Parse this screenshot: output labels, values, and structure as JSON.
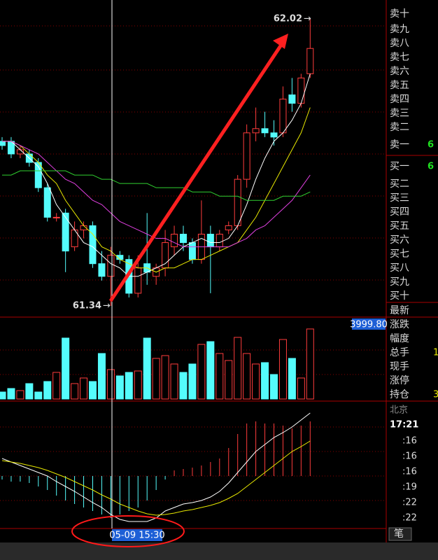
{
  "chart": {
    "high": 62.02,
    "low": 61.34,
    "ohlc": [
      [
        61.73,
        61.74,
        61.71,
        61.72
      ],
      [
        61.73,
        61.74,
        61.69,
        61.7
      ],
      [
        61.7,
        61.72,
        61.69,
        61.71
      ],
      [
        61.7,
        61.71,
        61.67,
        61.68
      ],
      [
        61.68,
        61.69,
        61.61,
        61.62
      ],
      [
        61.62,
        61.63,
        61.54,
        61.55
      ],
      [
        61.55,
        61.56,
        61.54,
        61.55
      ],
      [
        61.56,
        61.57,
        61.42,
        61.47
      ],
      [
        61.48,
        61.54,
        61.47,
        61.52
      ],
      [
        61.52,
        61.54,
        61.5,
        61.53
      ],
      [
        61.53,
        61.54,
        61.43,
        61.44
      ],
      [
        61.44,
        61.47,
        61.4,
        61.41
      ],
      [
        61.41,
        61.48,
        61.34,
        61.46
      ],
      [
        61.46,
        61.47,
        61.44,
        61.45
      ],
      [
        61.45,
        61.46,
        61.36,
        61.37
      ],
      [
        61.37,
        61.46,
        61.36,
        61.43
      ],
      [
        61.44,
        61.56,
        61.39,
        61.42
      ],
      [
        61.41,
        61.44,
        61.39,
        61.43
      ],
      [
        61.43,
        61.52,
        61.41,
        61.49
      ],
      [
        61.48,
        61.53,
        61.46,
        61.51
      ],
      [
        61.51,
        61.53,
        61.47,
        61.49
      ],
      [
        61.49,
        61.5,
        61.44,
        61.45
      ],
      [
        61.45,
        61.59,
        61.44,
        61.51
      ],
      [
        61.51,
        61.53,
        61.37,
        61.48
      ],
      [
        61.48,
        61.52,
        61.47,
        61.51
      ],
      [
        61.52,
        61.54,
        61.51,
        61.53
      ],
      [
        61.53,
        61.65,
        61.52,
        61.64
      ],
      [
        61.64,
        61.77,
        61.62,
        61.75
      ],
      [
        61.75,
        61.81,
        61.73,
        61.76
      ],
      [
        61.76,
        61.8,
        61.74,
        61.75
      ],
      [
        61.75,
        61.78,
        61.72,
        61.74
      ],
      [
        61.75,
        61.86,
        61.74,
        61.83
      ],
      [
        61.84,
        61.88,
        61.8,
        61.82
      ],
      [
        61.82,
        61.89,
        61.81,
        61.88
      ],
      [
        61.89,
        62.02,
        61.88,
        61.95
      ]
    ],
    "ma": [
      {
        "color": "#ffffff",
        "values": [
          61.73,
          61.73,
          61.71,
          61.69,
          61.67,
          61.63,
          61.58,
          61.55,
          61.52,
          61.49,
          61.48,
          61.46,
          61.44,
          61.43,
          61.41,
          61.41,
          61.42,
          61.43,
          61.44,
          61.46,
          61.48,
          61.49,
          61.5,
          61.49,
          61.49,
          61.5,
          61.53,
          61.58,
          61.64,
          61.69,
          61.73,
          61.75,
          61.78,
          61.82,
          61.89
        ]
      },
      {
        "color": "#e8e800",
        "values": [
          61.73,
          61.73,
          61.72,
          61.7,
          61.68,
          61.65,
          61.63,
          61.59,
          61.56,
          61.53,
          61.51,
          61.48,
          61.47,
          61.45,
          61.44,
          61.43,
          61.43,
          61.42,
          61.43,
          61.43,
          61.44,
          61.45,
          61.45,
          61.46,
          61.47,
          61.48,
          61.49,
          61.52,
          61.55,
          61.59,
          61.63,
          61.67,
          61.71,
          61.75,
          61.81
        ]
      },
      {
        "color": "#e040e0",
        "values": [
          61.73,
          61.73,
          61.72,
          61.71,
          61.7,
          61.68,
          61.66,
          61.64,
          61.63,
          61.61,
          61.59,
          61.58,
          61.56,
          61.54,
          61.53,
          61.52,
          61.51,
          61.5,
          61.5,
          61.49,
          61.48,
          61.48,
          61.48,
          61.48,
          61.48,
          61.48,
          61.49,
          61.5,
          61.52,
          61.53,
          61.55,
          61.57,
          61.59,
          61.62,
          61.65
        ]
      },
      {
        "color": "#30d030",
        "values": [
          61.65,
          61.65,
          61.66,
          61.66,
          61.66,
          61.66,
          61.66,
          61.66,
          61.65,
          61.65,
          61.65,
          61.64,
          61.64,
          61.63,
          61.63,
          61.63,
          61.63,
          61.62,
          61.62,
          61.62,
          61.62,
          61.61,
          61.61,
          61.61,
          61.6,
          61.6,
          61.6,
          61.59,
          61.59,
          61.59,
          61.59,
          61.6,
          61.6,
          61.6,
          61.61
        ]
      }
    ],
    "volume_top": {
      "value": 3999.8,
      "label": "3999.80"
    },
    "volume": [
      374,
      561,
      449,
      823,
      374,
      935,
      1421,
      3254,
      823,
      1122,
      935,
      2430,
      1571,
      1234,
      1421,
      1496,
      3254,
      2169,
      2318,
      1870,
      1421,
      1870,
      2916,
      3065,
      2430,
      2056,
      3291,
      2430,
      1870,
      1944,
      1309,
      3178,
      2169,
      1122,
      3740
    ],
    "macd": [
      -0.005,
      -0.008,
      -0.008,
      -0.01,
      -0.015,
      -0.02,
      -0.028,
      -0.035,
      -0.04,
      -0.045,
      -0.05,
      -0.055,
      -0.06,
      -0.055,
      -0.05,
      -0.045,
      -0.035,
      -0.02,
      -0.005,
      0.008,
      0.01,
      0.012,
      0.015,
      0.02,
      0.025,
      0.04,
      0.06,
      0.075,
      0.078,
      0.075,
      0.075,
      0.072,
      0.068,
      0.072,
      0.078
    ],
    "dif": [
      0.025,
      0.02,
      0.015,
      0.01,
      0.005,
      0,
      -0.008,
      -0.015,
      -0.022,
      -0.03,
      -0.038,
      -0.045,
      -0.055,
      -0.062,
      -0.065,
      -0.065,
      -0.065,
      -0.06,
      -0.05,
      -0.045,
      -0.04,
      -0.038,
      -0.035,
      -0.03,
      -0.022,
      -0.01,
      0.005,
      0.02,
      0.035,
      0.045,
      0.055,
      0.062,
      0.07,
      0.08,
      0.09
    ],
    "dea": [
      0.022,
      0.02,
      0.018,
      0.015,
      0.012,
      0.008,
      0.003,
      -0.002,
      -0.008,
      -0.014,
      -0.02,
      -0.027,
      -0.033,
      -0.04,
      -0.045,
      -0.05,
      -0.054,
      -0.056,
      -0.055,
      -0.053,
      -0.05,
      -0.048,
      -0.045,
      -0.042,
      -0.038,
      -0.032,
      -0.025,
      -0.015,
      -0.005,
      0.005,
      0.015,
      0.025,
      0.035,
      0.042,
      0.05
    ],
    "cursor_time": "05-09 15:30"
  },
  "side": {
    "asks": [
      "卖十",
      "卖九",
      "卖八",
      "卖七",
      "卖六",
      "卖五",
      "卖四",
      "卖三",
      "卖二",
      "卖一"
    ],
    "ask1": 6,
    "bids": [
      "买一",
      "买二",
      "买三",
      "买四",
      "买五",
      "买六",
      "买七",
      "买八",
      "买九",
      "买十"
    ],
    "bid1": 6,
    "quote_labels": [
      "最新",
      "涨跌",
      "幅度",
      "总手",
      "现手",
      "涨停",
      "持仓"
    ],
    "total_hands": 1,
    "position": 3,
    "place": "北京",
    "time": "17:21",
    "tick_times": [
      ":16",
      ":16",
      ":16",
      ":19",
      ":22",
      ":22"
    ],
    "tab": "笔"
  }
}
